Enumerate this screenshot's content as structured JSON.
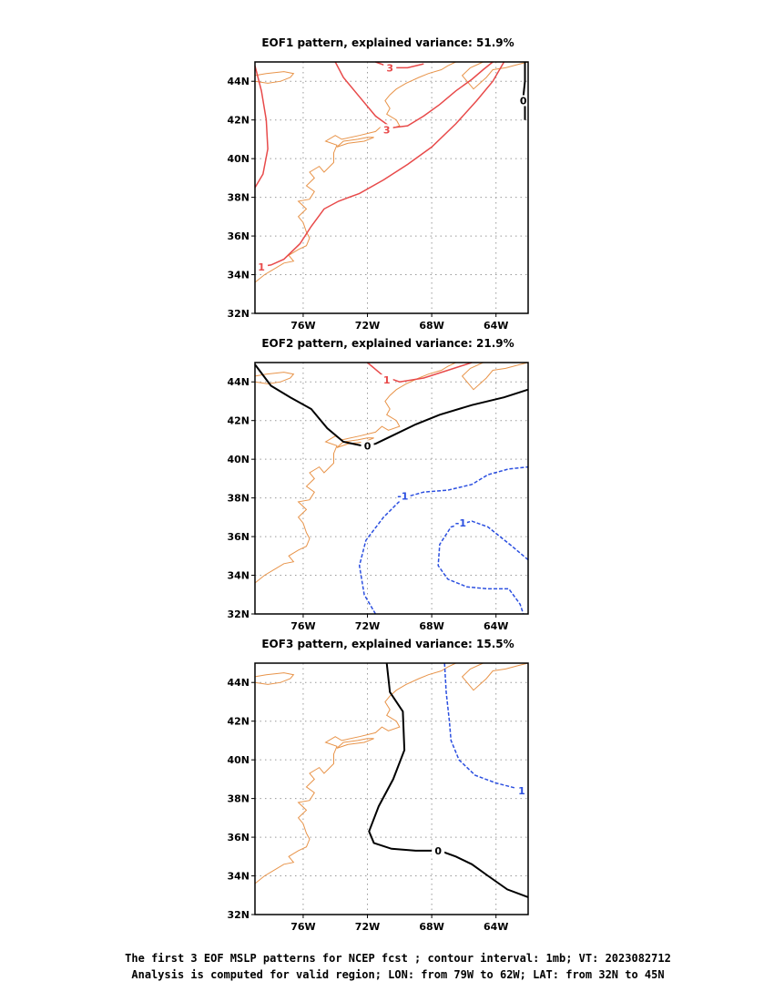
{
  "panels": [
    {
      "title": "EOF1 pattern, explained variance: 51.9%",
      "contours": [
        {
          "value": 3,
          "label": "3",
          "color": "#e84a4a",
          "style": "solid",
          "points": [
            [
              -74.0,
              45.0
            ],
            [
              -73.5,
              44.2
            ],
            [
              -72.5,
              43.2
            ],
            [
              -71.5,
              42.2
            ],
            [
              -70.5,
              41.6
            ],
            [
              -69.5,
              41.7
            ],
            [
              -68.5,
              42.2
            ],
            [
              -67.5,
              42.8
            ],
            [
              -66.5,
              43.5
            ],
            [
              -65.5,
              44.1
            ],
            [
              -64.8,
              44.6
            ],
            [
              -64.2,
              45.0
            ]
          ],
          "label_at": [
            -70.8,
            41.5
          ]
        },
        {
          "value": 3,
          "label": "3",
          "color": "#e84a4a",
          "style": "solid",
          "points": [
            [
              -71.5,
              45.0
            ],
            [
              -70.5,
              44.7
            ],
            [
              -69.5,
              44.7
            ],
            [
              -68.5,
              44.9
            ]
          ],
          "label_at": [
            -70.6,
            44.7
          ]
        },
        {
          "value": 1,
          "label": "1",
          "color": "#e84a4a",
          "style": "solid",
          "points": [
            [
              -78.8,
              34.4
            ],
            [
              -78.0,
              34.5
            ],
            [
              -77.2,
              34.8
            ],
            [
              -76.2,
              35.6
            ],
            [
              -75.5,
              36.5
            ],
            [
              -74.7,
              37.4
            ],
            [
              -73.8,
              37.8
            ],
            [
              -72.5,
              38.2
            ],
            [
              -71.0,
              38.9
            ],
            [
              -69.5,
              39.7
            ],
            [
              -68.0,
              40.6
            ],
            [
              -66.5,
              41.8
            ],
            [
              -65.2,
              43.0
            ],
            [
              -64.2,
              44.0
            ],
            [
              -63.5,
              45.0
            ]
          ],
          "label_at": [
            -78.6,
            34.4
          ]
        },
        {
          "value": 2,
          "label": "",
          "color": "#e84a4a",
          "style": "solid",
          "points": [
            [
              -79.0,
              38.5
            ],
            [
              -78.5,
              39.2
            ],
            [
              -78.2,
              40.5
            ],
            [
              -78.3,
              42.0
            ],
            [
              -78.6,
              43.5
            ],
            [
              -79.0,
              44.8
            ]
          ],
          "label_at": null
        },
        {
          "value": 0,
          "label": "0",
          "color": "#000000",
          "style": "solid",
          "points": [
            [
              -62.2,
              45.0
            ],
            [
              -62.2,
              44.0
            ],
            [
              -62.3,
              43.2
            ],
            [
              -62.2,
              42.8
            ],
            [
              -62.2,
              42.0
            ]
          ],
          "label_at": [
            -62.3,
            43.0
          ]
        }
      ]
    },
    {
      "title": "EOF2 pattern, explained variance: 21.9%",
      "contours": [
        {
          "value": 1,
          "label": "1",
          "color": "#e84a4a",
          "style": "solid",
          "points": [
            [
              -72.0,
              45.0
            ],
            [
              -71.0,
              44.3
            ],
            [
              -70.0,
              44.0
            ],
            [
              -68.5,
              44.2
            ],
            [
              -67.0,
              44.6
            ],
            [
              -65.5,
              45.0
            ]
          ],
          "label_at": [
            -70.8,
            44.1
          ]
        },
        {
          "value": 0,
          "label": "0",
          "color": "#000000",
          "style": "solid",
          "points": [
            [
              -79.0,
              44.9
            ],
            [
              -78.0,
              43.8
            ],
            [
              -76.8,
              43.2
            ],
            [
              -75.5,
              42.6
            ],
            [
              -74.5,
              41.6
            ],
            [
              -73.5,
              40.9
            ],
            [
              -72.3,
              40.7
            ],
            [
              -71.5,
              40.8
            ],
            [
              -70.5,
              41.2
            ],
            [
              -69.0,
              41.8
            ],
            [
              -67.5,
              42.3
            ],
            [
              -65.5,
              42.8
            ],
            [
              -63.5,
              43.2
            ],
            [
              -62.0,
              43.6
            ]
          ],
          "label_at": [
            -72.0,
            40.7
          ]
        },
        {
          "value": -1,
          "label": "-1",
          "color": "#2b4fe0",
          "style": "dashed",
          "points": [
            [
              -71.5,
              32.0
            ],
            [
              -72.2,
              33.0
            ],
            [
              -72.5,
              34.5
            ],
            [
              -72.1,
              35.8
            ],
            [
              -71.0,
              37.0
            ],
            [
              -69.8,
              38.0
            ],
            [
              -68.5,
              38.3
            ],
            [
              -67.0,
              38.4
            ],
            [
              -65.5,
              38.7
            ],
            [
              -64.5,
              39.2
            ],
            [
              -63.2,
              39.5
            ],
            [
              -62.0,
              39.6
            ]
          ],
          "label_at": [
            -69.8,
            38.1
          ]
        },
        {
          "value": -1,
          "label": "-1",
          "color": "#2b4fe0",
          "style": "dashed",
          "points": [
            [
              -62.0,
              34.8
            ],
            [
              -63.0,
              35.5
            ],
            [
              -64.5,
              36.5
            ],
            [
              -65.5,
              36.8
            ],
            [
              -66.8,
              36.5
            ],
            [
              -67.5,
              35.6
            ],
            [
              -67.6,
              34.5
            ],
            [
              -67.0,
              33.8
            ],
            [
              -65.8,
              33.4
            ],
            [
              -64.5,
              33.3
            ],
            [
              -63.2,
              33.3
            ],
            [
              -62.5,
              32.5
            ],
            [
              -62.3,
              32.0
            ]
          ],
          "label_at": [
            -66.2,
            36.7
          ]
        }
      ]
    },
    {
      "title": "EOF3 pattern, explained variance: 15.5%",
      "contours": [
        {
          "value": 0,
          "label": "0",
          "color": "#000000",
          "style": "solid",
          "points": [
            [
              -70.8,
              45.0
            ],
            [
              -70.6,
              43.5
            ],
            [
              -69.8,
              42.5
            ],
            [
              -69.7,
              40.5
            ],
            [
              -70.4,
              39.0
            ],
            [
              -71.3,
              37.6
            ],
            [
              -71.9,
              36.3
            ],
            [
              -71.6,
              35.7
            ],
            [
              -70.5,
              35.4
            ],
            [
              -69.0,
              35.3
            ],
            [
              -67.5,
              35.3
            ],
            [
              -66.5,
              35.0
            ],
            [
              -65.5,
              34.6
            ],
            [
              -64.5,
              34.0
            ],
            [
              -63.3,
              33.3
            ],
            [
              -62.0,
              32.9
            ]
          ],
          "label_at": [
            -67.6,
            35.3
          ]
        },
        {
          "value": 1,
          "label": "1",
          "color": "#2b4fe0",
          "style": "dashed",
          "points": [
            [
              -67.2,
              45.0
            ],
            [
              -67.1,
              43.5
            ],
            [
              -66.9,
              42.0
            ],
            [
              -66.8,
              41.0
            ],
            [
              -66.3,
              40.0
            ],
            [
              -65.3,
              39.2
            ],
            [
              -64.0,
              38.8
            ],
            [
              -62.6,
              38.5
            ],
            [
              -62.2,
              38.4
            ]
          ],
          "label_at": [
            -62.4,
            38.4
          ]
        }
      ]
    }
  ],
  "axes": {
    "lon_range": [
      -79,
      -62
    ],
    "lat_range": [
      32,
      45
    ],
    "lon_ticks": [
      -76,
      -72,
      -68,
      -64
    ],
    "lon_labels": [
      "76W",
      "72W",
      "68W",
      "64W"
    ],
    "lat_ticks": [
      32,
      34,
      36,
      38,
      40,
      42,
      44
    ],
    "lat_labels": [
      "32N",
      "34N",
      "36N",
      "38N",
      "40N",
      "42N",
      "44N"
    ]
  },
  "coastline_color": "#e8944a",
  "coastlines": [
    [
      [
        -79.0,
        33.6
      ],
      [
        -78.4,
        34.0
      ],
      [
        -77.8,
        34.3
      ],
      [
        -77.2,
        34.6
      ],
      [
        -76.6,
        34.7
      ],
      [
        -76.9,
        35.0
      ],
      [
        -76.3,
        35.3
      ],
      [
        -75.8,
        35.5
      ],
      [
        -75.6,
        35.9
      ],
      [
        -75.8,
        36.2
      ],
      [
        -76.0,
        36.7
      ],
      [
        -76.3,
        37.0
      ],
      [
        -75.8,
        37.4
      ],
      [
        -76.3,
        37.8
      ],
      [
        -75.6,
        37.9
      ],
      [
        -75.3,
        38.3
      ],
      [
        -75.8,
        38.6
      ],
      [
        -75.3,
        39.0
      ],
      [
        -75.6,
        39.3
      ],
      [
        -75.0,
        39.6
      ],
      [
        -74.7,
        39.3
      ],
      [
        -74.1,
        39.8
      ],
      [
        -74.1,
        40.3
      ],
      [
        -73.9,
        40.7
      ],
      [
        -74.6,
        40.9
      ],
      [
        -74.0,
        41.2
      ],
      [
        -73.6,
        41.0
      ],
      [
        -72.5,
        41.2
      ],
      [
        -71.5,
        41.4
      ],
      [
        -71.1,
        41.7
      ],
      [
        -70.7,
        41.5
      ],
      [
        -70.0,
        41.7
      ],
      [
        -70.2,
        42.0
      ],
      [
        -70.8,
        42.3
      ],
      [
        -70.6,
        42.6
      ],
      [
        -70.9,
        43.0
      ],
      [
        -70.6,
        43.3
      ],
      [
        -70.2,
        43.6
      ],
      [
        -69.6,
        43.9
      ],
      [
        -68.8,
        44.2
      ],
      [
        -68.2,
        44.4
      ],
      [
        -67.4,
        44.6
      ],
      [
        -67.0,
        44.8
      ],
      [
        -66.5,
        45.0
      ]
    ],
    [
      [
        -72.0,
        41.1
      ],
      [
        -71.6,
        41.1
      ],
      [
        -72.2,
        40.9
      ],
      [
        -73.2,
        40.8
      ],
      [
        -73.9,
        40.6
      ],
      [
        -73.5,
        40.9
      ],
      [
        -72.6,
        41.0
      ],
      [
        -72.0,
        41.1
      ]
    ],
    [
      [
        -79.0,
        44.0
      ],
      [
        -78.2,
        43.9
      ],
      [
        -77.4,
        44.0
      ],
      [
        -76.8,
        44.2
      ],
      [
        -76.6,
        44.4
      ],
      [
        -77.2,
        44.5
      ],
      [
        -78.3,
        44.4
      ],
      [
        -79.0,
        44.3
      ]
    ],
    [
      [
        -64.8,
        45.0
      ],
      [
        -65.6,
        44.7
      ],
      [
        -66.1,
        44.3
      ],
      [
        -65.4,
        43.6
      ],
      [
        -64.6,
        44.2
      ],
      [
        -64.2,
        44.6
      ],
      [
        -63.4,
        44.7
      ],
      [
        -62.5,
        44.9
      ],
      [
        -62.0,
        45.0
      ]
    ]
  ],
  "caption": {
    "line1": "The first 3 EOF MSLP patterns for NCEP fcst ; contour interval: 1mb; VT: 2023082712",
    "line2": "Analysis is computed for valid region; LON: from 79W to 62W; LAT: from 32N to 45N"
  }
}
